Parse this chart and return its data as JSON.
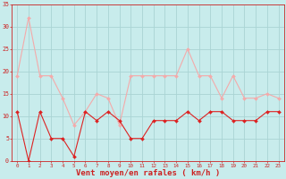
{
  "x": [
    0,
    1,
    2,
    3,
    4,
    5,
    6,
    7,
    8,
    9,
    10,
    11,
    12,
    13,
    14,
    15,
    16,
    17,
    18,
    19,
    20,
    21,
    22,
    23
  ],
  "wind_avg": [
    11,
    0,
    11,
    5,
    5,
    1,
    11,
    9,
    11,
    9,
    5,
    5,
    9,
    9,
    9,
    11,
    9,
    11,
    11,
    9,
    9,
    9,
    11,
    11
  ],
  "wind_gust": [
    19,
    32,
    19,
    19,
    14,
    8,
    11,
    15,
    14,
    8,
    19,
    19,
    19,
    19,
    19,
    25,
    19,
    19,
    14,
    19,
    14,
    14,
    15,
    14
  ],
  "avg_color": "#dd2222",
  "gust_color": "#f4aaaa",
  "bg_color": "#c8ecec",
  "grid_color": "#aad4d4",
  "text_color": "#cc2222",
  "xlabel": "Vent moyen/en rafales ( km/h )",
  "ylabel_ticks": [
    0,
    5,
    10,
    15,
    20,
    25,
    30,
    35
  ],
  "ylim": [
    0,
    35
  ],
  "xlim": [
    -0.5,
    23.5
  ]
}
